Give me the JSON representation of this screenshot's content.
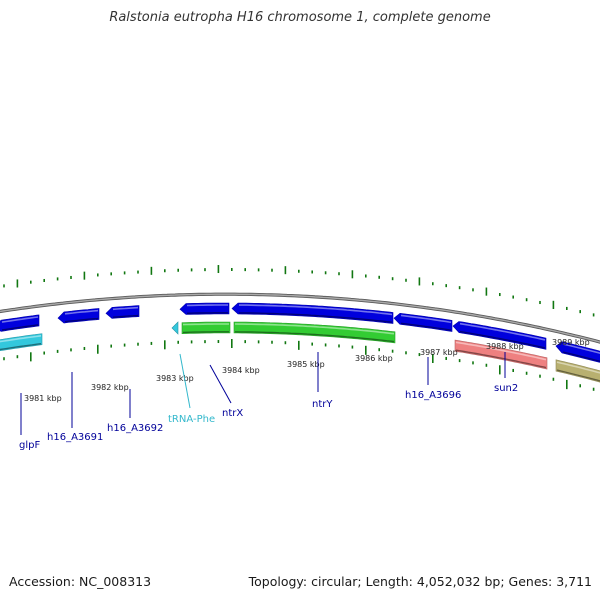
{
  "title": "Ralstonia eutropha H16 chromosome 1, complete genome",
  "footer": {
    "accession": "Accession: NC_008313",
    "summary": "Topology: circular; Length: 4,052,032 bp; Genes: 3,711"
  },
  "colors": {
    "cds": "#0000dd",
    "rrna_green": "#33cc33",
    "trna": "#33c8dd",
    "salmon": "#ee8080",
    "olive": "#b8b070",
    "backbone": "#888888",
    "tick": "#117711",
    "label_blue": "#000099",
    "label_trna": "#33b8cc"
  },
  "ticks": [
    {
      "label": "3981 kbp"
    },
    {
      "label": "3982 kbp"
    },
    {
      "label": "3983 kbp"
    },
    {
      "label": "3984 kbp"
    },
    {
      "label": "3985 kbp"
    },
    {
      "label": "3986 kbp"
    },
    {
      "label": "3987 kbp"
    },
    {
      "label": "3988 kbp"
    },
    {
      "label": "3989 kbp"
    }
  ],
  "genes": [
    {
      "name": "glpF",
      "type": "cds"
    },
    {
      "name": "h16_A3691",
      "type": "cds"
    },
    {
      "name": "h16_A3692",
      "type": "cds"
    },
    {
      "name": "tRNA-Phe",
      "type": "trna"
    },
    {
      "name": "ntrX",
      "type": "cds"
    },
    {
      "name": "ntrY",
      "type": "cds"
    },
    {
      "name": "h16_A3696",
      "type": "cds"
    },
    {
      "name": "sun2",
      "type": "cds"
    }
  ]
}
